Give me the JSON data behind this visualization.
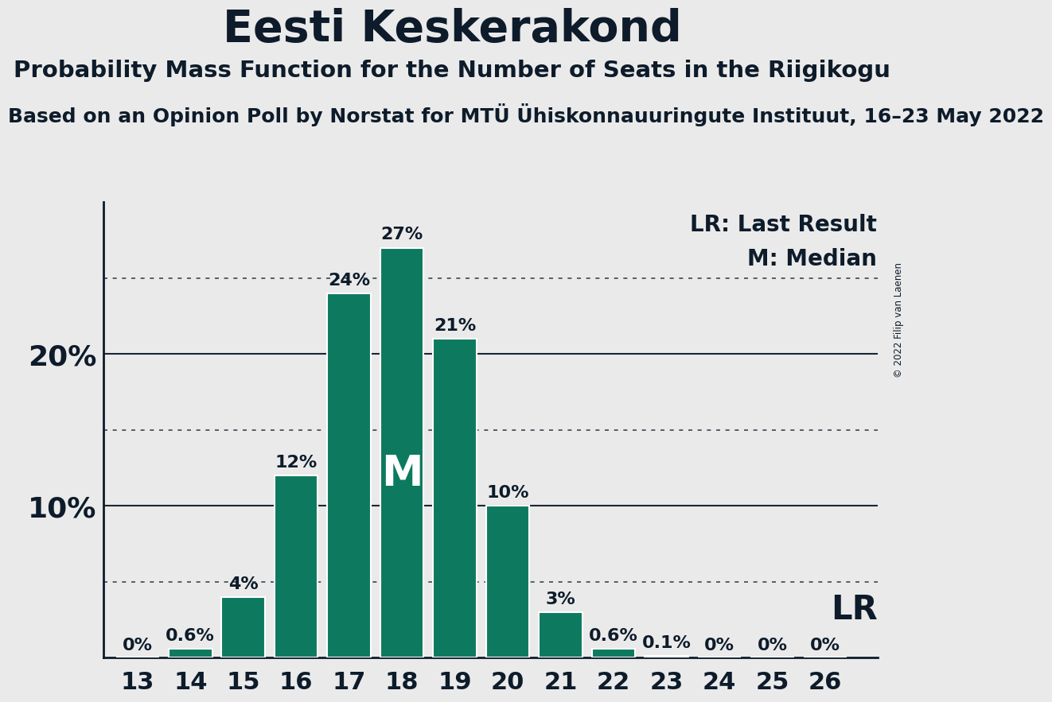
{
  "title": "Eesti Keskerakond",
  "subtitle": "Probability Mass Function for the Number of Seats in the Riigikogu",
  "sub_subtitle": "Based on an Opinion Poll by Norstat for MTÜ Ühiskonnauuringute Instituut, 16–23 May 2022",
  "copyright": "© 2022 Filip van Laenen",
  "categories": [
    13,
    14,
    15,
    16,
    17,
    18,
    19,
    20,
    21,
    22,
    23,
    24,
    25,
    26
  ],
  "values": [
    0.0,
    0.6,
    4.0,
    12.0,
    24.0,
    27.0,
    21.0,
    10.0,
    3.0,
    0.6,
    0.1,
    0.0,
    0.0,
    0.0
  ],
  "bar_color": "#0d7a5f",
  "bar_edge_color": "#ffffff",
  "background_color": "#eaeaea",
  "text_color": "#0d1b2a",
  "median_seat": 18,
  "lr_seat": 26,
  "lr_label": "LR",
  "median_label": "M",
  "legend_lr": "LR: Last Result",
  "legend_m": "M: Median",
  "dotted_lines": [
    5,
    15,
    25
  ],
  "solid_lines": [
    10,
    20
  ],
  "ylim": [
    0,
    30
  ],
  "bar_label_fontsize": 16,
  "title_fontsize": 40,
  "subtitle_fontsize": 21,
  "sub_subtitle_fontsize": 18,
  "axis_tick_fontsize": 22,
  "ylabel_fontsize": 26,
  "median_label_fontsize": 38,
  "lr_fontsize": 30,
  "legend_fontsize": 20
}
